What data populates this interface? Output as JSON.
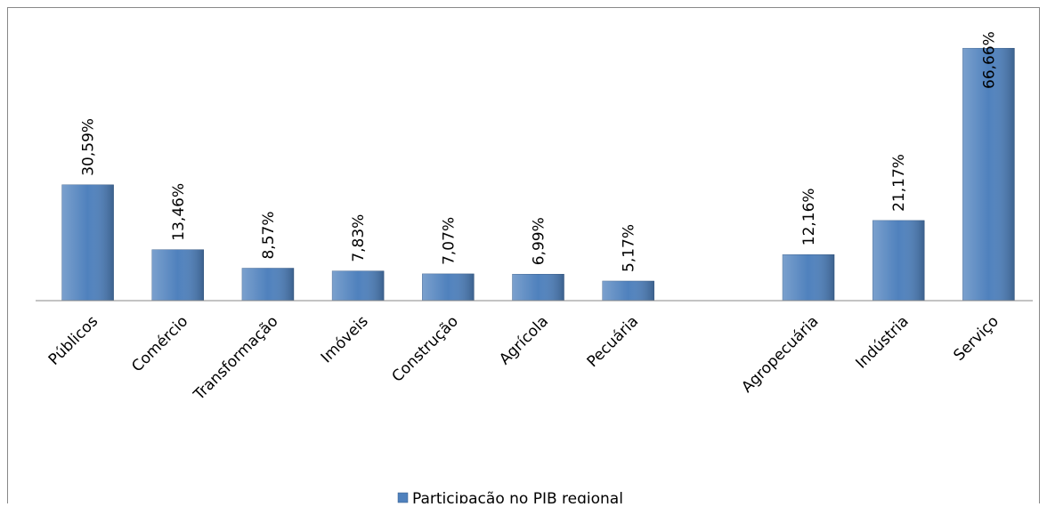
{
  "chart_data": {
    "type": "bar",
    "categories": [
      "Públicos",
      "Comércio",
      "Transformação",
      "Imóveis",
      "Construção",
      "Agrícola",
      "Pecuária",
      null,
      "Agropecuária",
      "Indústria",
      "Serviço"
    ],
    "series": [
      {
        "name": "Participação no PIB regional",
        "color": "#4f81bd",
        "values": [
          30.59,
          13.46,
          8.57,
          7.83,
          7.07,
          6.99,
          5.17,
          null,
          12.16,
          21.17,
          66.66
        ],
        "value_labels": [
          "30,59%",
          "13,46%",
          "8,57%",
          "7,83%",
          "7,07%",
          "6,99%",
          "5,17%",
          null,
          "12,16%",
          "21,17%",
          "66,66%"
        ]
      }
    ],
    "ylim": [
      0,
      70
    ],
    "legend": "bottom"
  }
}
